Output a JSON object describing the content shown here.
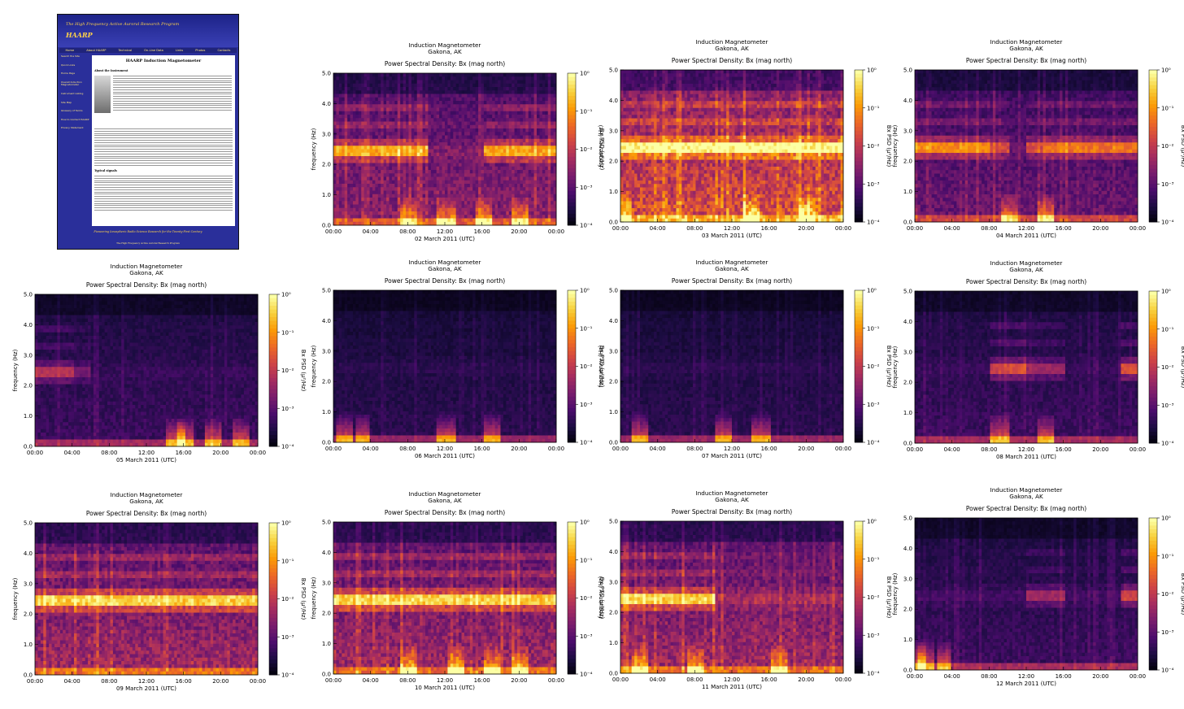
{
  "thumbnail": {
    "tagline": "The High Frequency Active Auroral Research Program",
    "logo": "HAARP",
    "nav": [
      "Home",
      "About HAARP",
      "Technical",
      "On-Line Data",
      "Links",
      "Photos",
      "Contacts"
    ],
    "sidebar": [
      "Search the Site",
      "Quick Links",
      "Home Page",
      "Overall Induction Magnetometer",
      "Instrument Listing",
      "Site Map",
      "Glossary of Terms",
      "How to Contact HAARP",
      "Privacy Statement"
    ],
    "page_title": "HAARP Induction Magnetometer",
    "section_about": "About the Instrument",
    "section_signals": "Typical signals",
    "footer": "Pioneering Ionospheric Radio Science Research for the Twenty-First Century",
    "footer_small": "The High Frequency Active Auroral Research Program"
  },
  "chart_data": [
    {
      "type": "heatmap",
      "title": "Induction Magnetometer",
      "subtitle": "Gakona, AK",
      "plot_title": "Power Spectral Density: Bx (mag north)",
      "xlabel": "02 March 2011 (UTC)",
      "ylabel": "frequency (Hz)",
      "colorbar_label": "Bx PSD (μ²/Hz)",
      "x_ticks": [
        "00:00",
        "04:00",
        "08:00",
        "12:00",
        "16:00",
        "20:00",
        "00:00"
      ],
      "y_ticks": [
        "0.0",
        "1.0",
        "2.0",
        "3.0",
        "4.0",
        "5.0"
      ],
      "ylim": [
        0,
        5
      ],
      "colorbar_ticks": [
        "10⁰",
        "10⁻¹",
        "10⁻²",
        "10⁻³",
        "10⁻⁴"
      ],
      "colorbar_range": [
        0.0001,
        1
      ],
      "colormap": "inferno",
      "mean_level": 0.4,
      "band_hz": 2.45,
      "band_strength": [
        0.9,
        0.9,
        0.9,
        0.9,
        0.9,
        0.1,
        0.1,
        0.1,
        0.9,
        0.9,
        0.9,
        0.9
      ],
      "low_freq_bursts": [
        8,
        12,
        16,
        20
      ],
      "time_hours": 24
    },
    {
      "type": "heatmap",
      "title": "Induction Magnetometer",
      "subtitle": "Gakona, AK",
      "plot_title": "Power Spectral Density: Bx (mag north)",
      "xlabel": "03 March 2011 (UTC)",
      "ylabel": "frequency (Hz)",
      "colorbar_label": "Bx PSD (μ²/Hz)",
      "x_ticks": [
        "00:00",
        "04:00",
        "08:00",
        "12:00",
        "16:00",
        "20:00",
        "00:00"
      ],
      "y_ticks": [
        "0.0",
        "1.0",
        "2.0",
        "3.0",
        "4.0",
        "5.0"
      ],
      "ylim": [
        0,
        5
      ],
      "colorbar_ticks": [
        "10⁰",
        "10⁻¹",
        "10⁻²",
        "10⁻³",
        "10⁻⁴"
      ],
      "colorbar_range": [
        0.0001,
        1
      ],
      "colormap": "inferno",
      "mean_level": 0.62,
      "band_hz": 2.45,
      "band_strength": [
        1,
        1,
        1,
        1,
        1,
        1,
        1,
        1,
        1,
        1,
        1,
        1
      ],
      "low_freq_bursts": [
        0,
        14,
        20
      ],
      "time_hours": 24
    },
    {
      "type": "heatmap",
      "title": "Induction Magnetometer",
      "subtitle": "Gakona, AK",
      "plot_title": "Power Spectral Density: Bx (mag north)",
      "xlabel": "04 March 2011 (UTC)",
      "ylabel": "frequency (Hz)",
      "colorbar_label": "Bx PSD (μ²/Hz)",
      "x_ticks": [
        "00:00",
        "04:00",
        "08:00",
        "12:00",
        "16:00",
        "20:00",
        "00:00"
      ],
      "y_ticks": [
        "0.0",
        "1.0",
        "2.0",
        "3.0",
        "4.0",
        "5.0"
      ],
      "ylim": [
        0,
        5
      ],
      "colorbar_ticks": [
        "10⁰",
        "10⁻¹",
        "10⁻²",
        "10⁻³",
        "10⁻⁴"
      ],
      "colorbar_range": [
        0.0001,
        1
      ],
      "colormap": "inferno",
      "mean_level": 0.32,
      "band_hz": 2.45,
      "band_strength": [
        0.9,
        0.9,
        0.9,
        0.9,
        0.6,
        0.1,
        0.6,
        0.8,
        0.8,
        0.8,
        0.8,
        0.8
      ],
      "low_freq_bursts": [
        10,
        14
      ],
      "time_hours": 24
    },
    {
      "type": "heatmap",
      "title": "Induction Magnetometer",
      "subtitle": "Gakona, AK",
      "plot_title": "Power Spectral Density: Bx (mag north)",
      "xlabel": "05 March 2011 (UTC)",
      "ylabel": "frequency (Hz)",
      "colorbar_label": "Bx PSD (μ²/Hz)",
      "x_ticks": [
        "00:00",
        "04:00",
        "08:00",
        "12:00",
        "16:00",
        "20:00",
        "00:00"
      ],
      "y_ticks": [
        "0.0",
        "1.0",
        "2.0",
        "3.0",
        "4.0",
        "5.0"
      ],
      "ylim": [
        0,
        5
      ],
      "colorbar_ticks": [
        "10⁰",
        "10⁻¹",
        "10⁻²",
        "10⁻³",
        "10⁻⁴"
      ],
      "colorbar_range": [
        0.0001,
        1
      ],
      "colormap": "inferno",
      "mean_level": 0.2,
      "band_hz": 2.45,
      "band_strength": [
        0.6,
        0.6,
        0.3,
        0.05,
        0.05,
        0.05,
        0.05,
        0.05,
        0.05,
        0.05,
        0.05,
        0.05
      ],
      "low_freq_bursts": [
        15,
        16,
        19,
        22
      ],
      "time_hours": 24
    },
    {
      "type": "heatmap",
      "title": "Induction Magnetometer",
      "subtitle": "Gakona, AK",
      "plot_title": "Power Spectral Density: Bx (mag north)",
      "xlabel": "06 March 2011 (UTC)",
      "ylabel": "frequency (Hz)",
      "colorbar_label": "Bx PSD (μ²/Hz)",
      "x_ticks": [
        "00:00",
        "04:00",
        "08:00",
        "12:00",
        "16:00",
        "20:00",
        "00:00"
      ],
      "y_ticks": [
        "0.0",
        "1.0",
        "2.0",
        "3.0",
        "4.0",
        "5.0"
      ],
      "ylim": [
        0,
        5
      ],
      "colorbar_ticks": [
        "10⁰",
        "10⁻¹",
        "10⁻²",
        "10⁻³",
        "10⁻⁴"
      ],
      "colorbar_range": [
        0.0001,
        1
      ],
      "colormap": "inferno",
      "mean_level": 0.16,
      "band_hz": 2.45,
      "band_strength": [
        0.05,
        0.05,
        0.05,
        0.05,
        0.05,
        0.05,
        0.05,
        0.05,
        0.05,
        0.05,
        0.05,
        0.05
      ],
      "low_freq_bursts": [
        1,
        3,
        12,
        17
      ],
      "time_hours": 24
    },
    {
      "type": "heatmap",
      "title": "Induction Magnetometer",
      "subtitle": "Gakona, AK",
      "plot_title": "Power Spectral Density: Bx (mag north)",
      "xlabel": "07 March 2011 (UTC)",
      "ylabel": "frequency (Hz)",
      "colorbar_label": "Bx PSD (μ²/Hz)",
      "x_ticks": [
        "00:00",
        "04:00",
        "08:00",
        "12:00",
        "16:00",
        "20:00",
        "00:00"
      ],
      "y_ticks": [
        "0.0",
        "1.0",
        "2.0",
        "3.0",
        "4.0",
        "5.0"
      ],
      "ylim": [
        0,
        5
      ],
      "colorbar_ticks": [
        "10⁰",
        "10⁻¹",
        "10⁻²",
        "10⁻³",
        "10⁻⁴"
      ],
      "colorbar_range": [
        0.0001,
        1
      ],
      "colormap": "inferno",
      "mean_level": 0.16,
      "band_hz": 2.45,
      "band_strength": [
        0.05,
        0.05,
        0.05,
        0.05,
        0.05,
        0.05,
        0.05,
        0.05,
        0.05,
        0.05,
        0.05,
        0.05
      ],
      "low_freq_bursts": [
        2,
        11,
        15
      ],
      "time_hours": 24
    },
    {
      "type": "heatmap",
      "title": "Induction Magnetometer",
      "subtitle": "Gakona, AK",
      "plot_title": "Power Spectral Density: Bx (mag north)",
      "xlabel": "08 March 2011 (UTC)",
      "ylabel": "frequency (Hz)",
      "colorbar_label": "Bx PSD (μ²/Hz)",
      "x_ticks": [
        "00:00",
        "04:00",
        "08:00",
        "12:00",
        "16:00",
        "20:00",
        "00:00"
      ],
      "y_ticks": [
        "0.0",
        "1.0",
        "2.0",
        "3.0",
        "4.0",
        "5.0"
      ],
      "ylim": [
        0,
        5
      ],
      "colorbar_ticks": [
        "10⁰",
        "10⁻¹",
        "10⁻²",
        "10⁻³",
        "10⁻⁴"
      ],
      "colorbar_range": [
        0.0001,
        1
      ],
      "colormap": "inferno",
      "mean_level": 0.2,
      "band_hz": 2.45,
      "band_strength": [
        0.05,
        0.05,
        0.05,
        0.05,
        0.7,
        0.8,
        0.5,
        0.5,
        0.05,
        0.05,
        0.05,
        0.8
      ],
      "low_freq_bursts": [
        9,
        14
      ],
      "time_hours": 24
    },
    {
      "type": "heatmap",
      "title": "Induction Magnetometer",
      "subtitle": "Gakona, AK",
      "plot_title": "Power Spectral Density: Bx (mag north)",
      "xlabel": "09 March 2011 (UTC)",
      "ylabel": "frequency (Hz)",
      "colorbar_label": "Bx PSD (μ²/Hz)",
      "x_ticks": [
        "00:00",
        "04:00",
        "08:00",
        "12:00",
        "16:00",
        "20:00",
        "00:00"
      ],
      "y_ticks": [
        "0.0",
        "1.0",
        "2.0",
        "3.0",
        "4.0",
        "5.0"
      ],
      "ylim": [
        0,
        5
      ],
      "colorbar_ticks": [
        "10⁰",
        "10⁻¹",
        "10⁻²",
        "10⁻³",
        "10⁻⁴"
      ],
      "colorbar_range": [
        0.0001,
        1
      ],
      "colormap": "inferno",
      "mean_level": 0.45,
      "band_hz": 2.45,
      "band_strength": [
        1,
        1,
        1,
        1,
        1,
        1,
        1,
        1,
        1,
        1,
        1,
        1
      ],
      "low_freq_bursts": [],
      "time_hours": 24
    },
    {
      "type": "heatmap",
      "title": "Induction Magnetometer",
      "subtitle": "Gakona, AK",
      "plot_title": "Power Spectral Density: Bx (mag north)",
      "xlabel": "10 March 2011 (UTC)",
      "ylabel": "frequency (Hz)",
      "colorbar_label": "Bx PSD (μ²/Hz)",
      "x_ticks": [
        "00:00",
        "04:00",
        "08:00",
        "12:00",
        "16:00",
        "20:00",
        "00:00"
      ],
      "y_ticks": [
        "0.0",
        "1.0",
        "2.0",
        "3.0",
        "4.0",
        "5.0"
      ],
      "ylim": [
        0,
        5
      ],
      "colorbar_ticks": [
        "10⁰",
        "10⁻¹",
        "10⁻²",
        "10⁻³",
        "10⁻⁴"
      ],
      "colorbar_range": [
        0.0001,
        1
      ],
      "colormap": "inferno",
      "mean_level": 0.45,
      "band_hz": 2.45,
      "band_strength": [
        1,
        1,
        1,
        1,
        1,
        1,
        1,
        1,
        1,
        1,
        1,
        1
      ],
      "low_freq_bursts": [
        8,
        13,
        17,
        20
      ],
      "time_hours": 24
    },
    {
      "type": "heatmap",
      "title": "Induction Magnetometer",
      "subtitle": "Gakona, AK",
      "plot_title": "Power Spectral Density: Bx (mag north)",
      "xlabel": "11 March 2011 (UTC)",
      "ylabel": "frequency (Hz)",
      "colorbar_label": "Bx PSD (μ²/Hz)",
      "x_ticks": [
        "00:00",
        "04:00",
        "08:00",
        "12:00",
        "16:00",
        "20:00",
        "00:00"
      ],
      "y_ticks": [
        "0.0",
        "1.0",
        "2.0",
        "3.0",
        "4.0",
        "5.0"
      ],
      "ylim": [
        0,
        5
      ],
      "colorbar_ticks": [
        "10⁰",
        "10⁻¹",
        "10⁻²",
        "10⁻³",
        "10⁻⁴"
      ],
      "colorbar_range": [
        0.0001,
        1
      ],
      "colormap": "inferno",
      "mean_level": 0.45,
      "band_hz": 2.45,
      "band_strength": [
        1,
        1,
        1,
        1,
        1,
        0.2,
        0.2,
        0.2,
        0.2,
        0.2,
        0.2,
        0.2
      ],
      "low_freq_bursts": [
        2,
        8,
        17
      ],
      "time_hours": 24
    },
    {
      "type": "heatmap",
      "title": "Induction Magnetometer",
      "subtitle": "Gakona, AK",
      "plot_title": "Power Spectral Density: Bx (mag north)",
      "xlabel": "12 March 2011 (UTC)",
      "ylabel": "frequency (Hz)",
      "colorbar_label": "Bx PSD (μ²/Hz)",
      "x_ticks": [
        "00:00",
        "04:00",
        "08:00",
        "12:00",
        "16:00",
        "20:00",
        "00:00"
      ],
      "y_ticks": [
        "0.0",
        "1.0",
        "2.0",
        "3.0",
        "4.0",
        "5.0"
      ],
      "ylim": [
        0,
        5
      ],
      "colorbar_ticks": [
        "10⁰",
        "10⁻¹",
        "10⁻²",
        "10⁻³",
        "10⁻⁴"
      ],
      "colorbar_range": [
        0.0001,
        1
      ],
      "colormap": "inferno",
      "mean_level": 0.2,
      "band_hz": 2.45,
      "band_strength": [
        0.1,
        0.1,
        0.1,
        0.1,
        0.1,
        0.1,
        0.5,
        0.5,
        0.1,
        0.1,
        0.1,
        0.7
      ],
      "low_freq_bursts": [
        0,
        1,
        3
      ],
      "time_hours": 24
    }
  ]
}
